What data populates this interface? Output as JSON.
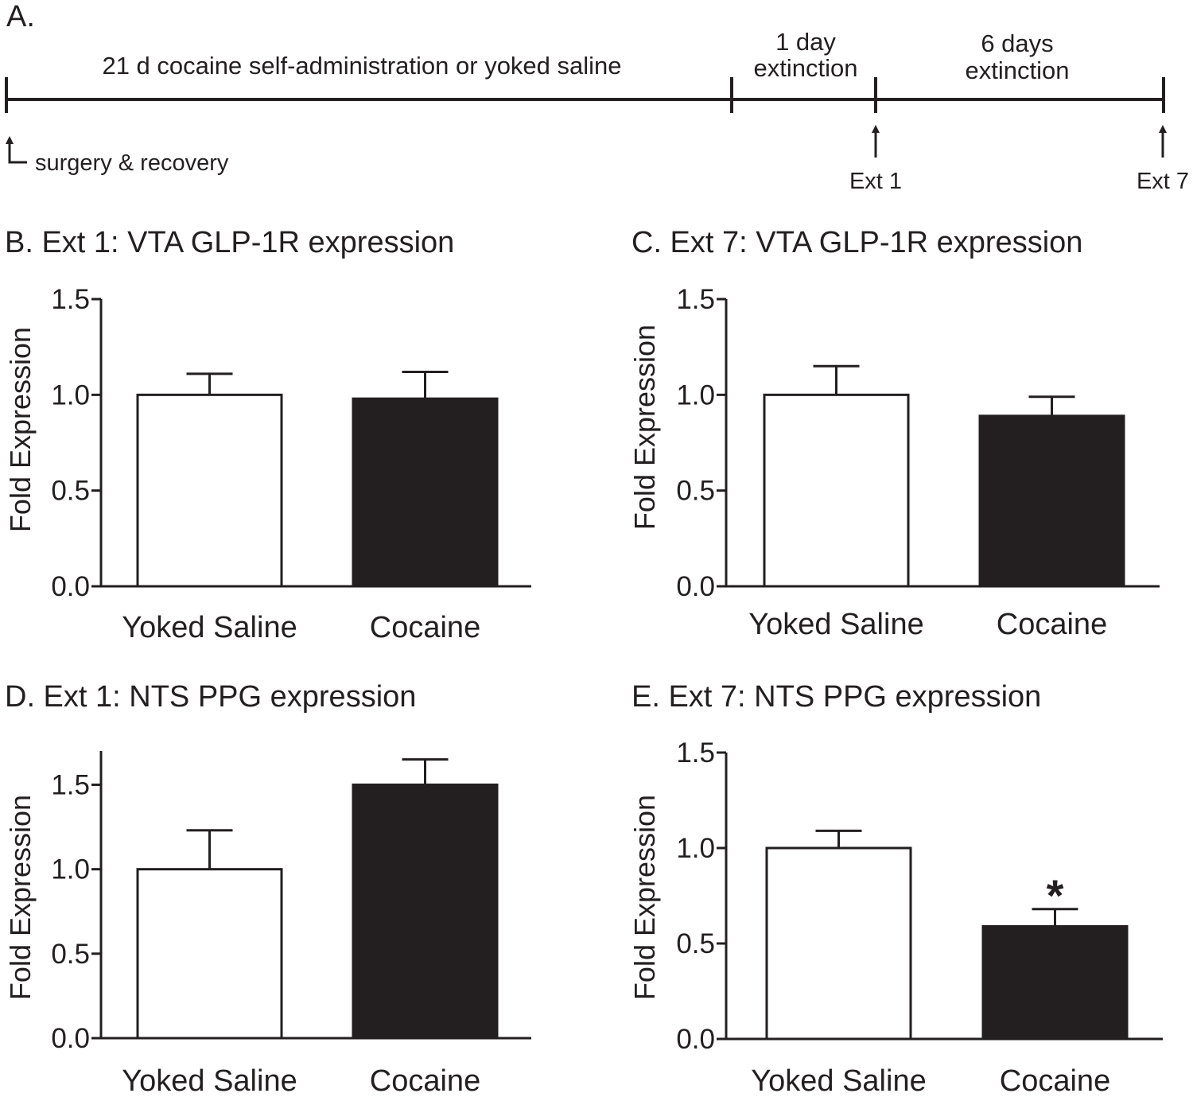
{
  "timeline": {
    "panel_label": "A.",
    "phase1_label": "21 d cocaine self-administration or yoked saline",
    "phase2_line1": "1 day",
    "phase2_line2": "extinction",
    "phase3_line1": "6 days",
    "phase3_line2": "extinction",
    "start_marker": "surgery & recovery",
    "marker_ext1": "Ext 1",
    "marker_ext7": "Ext 7"
  },
  "colors": {
    "ink": "#231f20",
    "saline_fill": "#ffffff",
    "cocaine_fill": "#231f20"
  },
  "chart_data": [
    {
      "type": "bar",
      "title": "B. Ext 1: VTA GLP-1R expression",
      "categories": [
        "Yoked Saline",
        "Cocaine"
      ],
      "values": [
        1.0,
        0.98
      ],
      "errors": [
        0.11,
        0.14
      ],
      "fills": [
        "white",
        "black"
      ],
      "xlabel": "",
      "ylabel": "Fold Expression",
      "ylim": [
        0,
        1.5
      ],
      "yticks": [
        "0.0",
        "0.5",
        "1.0",
        "1.5"
      ],
      "annotations": []
    },
    {
      "type": "bar",
      "title": "C. Ext 7: VTA GLP-1R expression",
      "categories": [
        "Yoked Saline",
        "Cocaine"
      ],
      "values": [
        1.0,
        0.89
      ],
      "errors": [
        0.15,
        0.1
      ],
      "fills": [
        "white",
        "black"
      ],
      "xlabel": "",
      "ylabel": "Fold Expression",
      "ylim": [
        0,
        1.5
      ],
      "yticks": [
        "0.0",
        "0.5",
        "1.0",
        "1.5"
      ],
      "annotations": []
    },
    {
      "type": "bar",
      "title": "D. Ext 1: NTS PPG expression",
      "categories": [
        "Yoked Saline",
        "Cocaine"
      ],
      "values": [
        1.0,
        1.5
      ],
      "errors": [
        0.23,
        0.15
      ],
      "fills": [
        "white",
        "black"
      ],
      "xlabel": "",
      "ylabel": "Fold Expression",
      "ylim": [
        0,
        1.7
      ],
      "yticks": [
        "0.0",
        "0.5",
        "1.0",
        "1.5"
      ],
      "annotations": []
    },
    {
      "type": "bar",
      "title": "E. Ext 7: NTS PPG expression",
      "categories": [
        "Yoked Saline",
        "Cocaine"
      ],
      "values": [
        1.0,
        0.59
      ],
      "errors": [
        0.09,
        0.09
      ],
      "fills": [
        "white",
        "black"
      ],
      "xlabel": "",
      "ylabel": "Fold Expression",
      "ylim": [
        0,
        1.5
      ],
      "yticks": [
        "0.0",
        "0.5",
        "1.0",
        "1.5"
      ],
      "annotations": [
        {
          "category_index": 1,
          "text": "*"
        }
      ]
    }
  ]
}
